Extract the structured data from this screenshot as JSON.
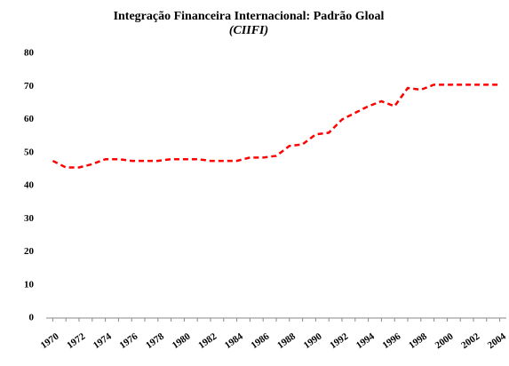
{
  "chart_data": {
    "type": "line",
    "title": "Integração Financeira Internacional: Padrão Gloal",
    "subtitle": "(CIIFI)",
    "categories": [
      "1970",
      null,
      "1972",
      null,
      "1974",
      null,
      "1976",
      null,
      "1978",
      null,
      "1980",
      null,
      "1982",
      null,
      "1984",
      null,
      "1986",
      null,
      "1988",
      null,
      "1990",
      null,
      "1992",
      null,
      "1994",
      null,
      "1996",
      null,
      "1998",
      null,
      "2000",
      null,
      "2002",
      null,
      "2004"
    ],
    "series": [
      {
        "color": "#ff0000",
        "values": [
          47.5,
          45.5,
          45.5,
          46.5,
          48,
          48,
          47.5,
          47.5,
          47.5,
          48,
          48,
          48,
          47.5,
          47.5,
          47.5,
          48.5,
          48.5,
          49,
          52,
          52.5,
          55.5,
          56,
          60,
          62,
          64,
          65.5,
          64,
          69.5,
          69,
          70.5,
          70.5,
          70.5,
          70.5,
          70.5,
          70.5
        ]
      }
    ],
    "ylim": [
      0,
      80
    ],
    "yticks": [
      0,
      10,
      20,
      30,
      40,
      50,
      60,
      70,
      80
    ],
    "grid": false
  }
}
